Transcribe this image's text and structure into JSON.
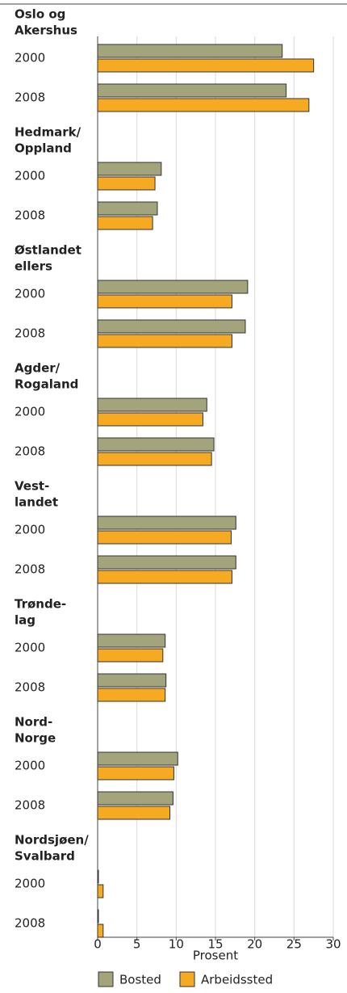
{
  "chart_data": {
    "type": "bar",
    "orientation": "horizontal",
    "groups": [
      {
        "name": [
          "Oslo og",
          "Akershus"
        ]
      },
      {
        "name": [
          "Hedmark/",
          "Oppland"
        ]
      },
      {
        "name": [
          "Østlandet",
          "ellers"
        ]
      },
      {
        "name": [
          "Agder/",
          "Rogaland"
        ]
      },
      {
        "name": [
          "Vest-",
          "landet"
        ]
      },
      {
        "name": [
          "Trønde-",
          "lag"
        ]
      },
      {
        "name": [
          "Nord-",
          "Norge"
        ]
      },
      {
        "name": [
          "Nordsjøen/",
          "Svalbard"
        ]
      }
    ],
    "categories": [
      "2000",
      "2008",
      "2000",
      "2008",
      "2000",
      "2008",
      "2000",
      "2008",
      "2000",
      "2008",
      "2000",
      "2008",
      "2000",
      "2008",
      "2000",
      "2008"
    ],
    "series": [
      {
        "name": "Bosted",
        "color": "#a3a37c",
        "values": [
          23.5,
          24.0,
          8.1,
          7.6,
          19.1,
          18.8,
          13.9,
          14.8,
          17.6,
          17.6,
          8.6,
          8.7,
          10.2,
          9.6,
          0.1,
          0.1
        ]
      },
      {
        "name": "Arbeidssted",
        "color": "#f5aa22",
        "values": [
          27.5,
          26.9,
          7.3,
          7.0,
          17.1,
          17.1,
          13.4,
          14.5,
          17.0,
          17.1,
          8.3,
          8.6,
          9.7,
          9.2,
          0.7,
          0.7
        ]
      }
    ],
    "xlabel": "Prosent",
    "xlim": [
      0,
      30
    ],
    "xticks": [
      0,
      5,
      10,
      15,
      20,
      25,
      30
    ],
    "grid": true,
    "legend": "bottom"
  }
}
